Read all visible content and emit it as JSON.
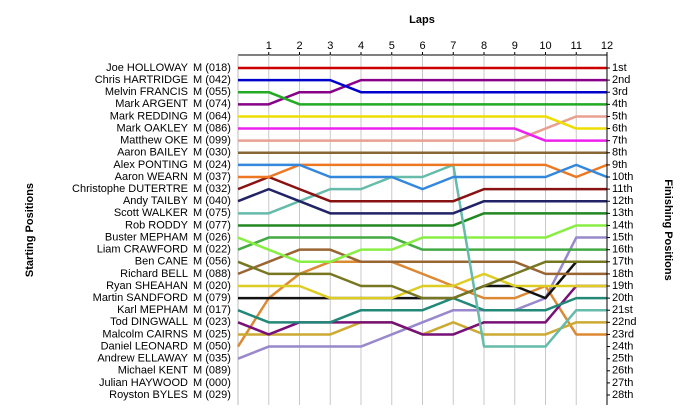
{
  "chart_data": {
    "type": "line",
    "title": "Laps",
    "y_label": "Starting Positions",
    "y2_label": "Finishing Positions",
    "x": [
      0,
      1,
      2,
      3,
      4,
      5,
      6,
      7,
      8,
      9,
      10,
      11,
      12
    ],
    "xlim": [
      0,
      12
    ],
    "xticks": [
      1,
      2,
      3,
      4,
      5,
      6,
      7,
      8,
      9,
      10,
      11,
      12
    ],
    "ylim": [
      1,
      28
    ],
    "y_inverted": true,
    "grid": true,
    "y2ticks": [
      {
        "value": 1,
        "label": "1st"
      },
      {
        "value": 2,
        "label": "2nd"
      },
      {
        "value": 3,
        "label": "3rd"
      },
      {
        "value": 4,
        "label": "4th"
      },
      {
        "value": 5,
        "label": "5th"
      },
      {
        "value": 6,
        "label": "6th"
      },
      {
        "value": 7,
        "label": "7th"
      },
      {
        "value": 8,
        "label": "8th"
      },
      {
        "value": 9,
        "label": "9th"
      },
      {
        "value": 10,
        "label": "10th"
      },
      {
        "value": 11,
        "label": "11th"
      },
      {
        "value": 12,
        "label": "12th"
      },
      {
        "value": 13,
        "label": "13th"
      },
      {
        "value": 14,
        "label": "14th"
      },
      {
        "value": 15,
        "label": "15th"
      },
      {
        "value": 16,
        "label": "16th"
      },
      {
        "value": 17,
        "label": "17th"
      },
      {
        "value": 18,
        "label": "18th"
      },
      {
        "value": 19,
        "label": "19th"
      },
      {
        "value": 20,
        "label": "20th"
      },
      {
        "value": 21,
        "label": "21st"
      },
      {
        "value": 22,
        "label": "22nd"
      },
      {
        "value": 23,
        "label": "23rd"
      },
      {
        "value": 24,
        "label": "24th"
      },
      {
        "value": 25,
        "label": "25th"
      },
      {
        "value": 26,
        "label": "26th"
      },
      {
        "value": 27,
        "label": "27th"
      },
      {
        "value": 28,
        "label": "28th"
      }
    ],
    "series": [
      {
        "name": "Joe HOLLOWAY",
        "entry": "M (018)",
        "color": "#cc0000",
        "values": [
          1,
          1,
          1,
          1,
          1,
          1,
          1,
          1,
          1,
          1,
          1,
          1,
          1
        ]
      },
      {
        "name": "Chris HARTRIDGE",
        "entry": "M (042)",
        "color": "#0000cc",
        "values": [
          2,
          2,
          2,
          2,
          3,
          3,
          3,
          3,
          3,
          3,
          3,
          3,
          3
        ]
      },
      {
        "name": "Melvin FRANCIS",
        "entry": "M (055)",
        "color": "#22aa22",
        "values": [
          3,
          3,
          4,
          4,
          4,
          4,
          4,
          4,
          4,
          4,
          4,
          4,
          4
        ]
      },
      {
        "name": "Mark ARGENT",
        "entry": "M (074)",
        "color": "#880088",
        "values": [
          4,
          4,
          3,
          3,
          2,
          2,
          2,
          2,
          2,
          2,
          2,
          2,
          2
        ]
      },
      {
        "name": "Mark REDDING",
        "entry": "M (064)",
        "color": "#eedd00",
        "values": [
          5,
          5,
          5,
          5,
          5,
          5,
          5,
          5,
          5,
          5,
          5,
          6,
          6
        ]
      },
      {
        "name": "Mark OAKLEY",
        "entry": "M (086)",
        "color": "#ee22ee",
        "values": [
          6,
          6,
          6,
          6,
          6,
          6,
          6,
          6,
          6,
          6,
          7,
          7,
          7
        ]
      },
      {
        "name": "Matthew OKE",
        "entry": "M (099)",
        "color": "#e8a090",
        "values": [
          7,
          7,
          7,
          7,
          7,
          7,
          7,
          7,
          7,
          7,
          6,
          5,
          5
        ]
      },
      {
        "name": "Aaron BAILEY",
        "entry": "M (030)",
        "color": "#886633",
        "values": [
          8,
          8,
          8,
          8,
          8,
          8,
          8,
          8,
          8,
          8,
          8,
          8,
          8
        ]
      },
      {
        "name": "Alex PONTING",
        "entry": "M (024)",
        "color": "#3388dd",
        "values": [
          9,
          9,
          9,
          10,
          10,
          10,
          11,
          10,
          10,
          10,
          10,
          9,
          10
        ]
      },
      {
        "name": "Aaron WEARN",
        "entry": "M (037)",
        "color": "#ee7722",
        "values": [
          10,
          10,
          9,
          9,
          9,
          9,
          9,
          9,
          9,
          9,
          9,
          10,
          9
        ]
      },
      {
        "name": "Christophe DUTERTRE",
        "entry": "M (032)",
        "color": "#881111",
        "values": [
          11,
          10,
          11,
          12,
          12,
          12,
          12,
          12,
          11,
          11,
          11,
          11,
          11
        ]
      },
      {
        "name": "Andy TAILBY",
        "entry": "M (040)",
        "color": "#222266",
        "values": [
          12,
          11,
          12,
          13,
          13,
          13,
          13,
          13,
          12,
          12,
          12,
          12,
          12
        ]
      },
      {
        "name": "Scott WALKER",
        "entry": "M (075)",
        "color": "#66bbaa",
        "values": [
          13,
          13,
          12,
          11,
          11,
          10,
          10,
          9,
          24,
          24,
          24,
          21,
          21
        ]
      },
      {
        "name": "Rob RODDY",
        "entry": "M (077)",
        "color": "#228822",
        "values": [
          14,
          14,
          14,
          14,
          14,
          14,
          14,
          14,
          13,
          13,
          13,
          13,
          13
        ]
      },
      {
        "name": "Buster MEPHAM",
        "entry": "M (026)",
        "color": "#88ee44",
        "values": [
          15,
          16,
          17,
          17,
          16,
          16,
          15,
          15,
          15,
          15,
          15,
          14,
          14
        ]
      },
      {
        "name": "Liam CRAWFORD",
        "entry": "M (022)",
        "color": "#44aa44",
        "values": [
          16,
          15,
          15,
          15,
          15,
          15,
          16,
          16,
          16,
          16,
          16,
          16,
          16
        ]
      },
      {
        "name": "Ben CANE",
        "entry": "M (056)",
        "color": "#777722",
        "values": [
          17,
          18,
          18,
          18,
          19,
          19,
          20,
          20,
          19,
          18,
          17,
          17,
          17
        ]
      },
      {
        "name": "Richard BELL",
        "entry": "M (088)",
        "color": "#996633",
        "values": [
          18,
          17,
          16,
          16,
          17,
          17,
          17,
          17,
          17,
          17,
          18,
          18,
          18
        ]
      },
      {
        "name": "Ryan SHEAHAN",
        "entry": "M (020)",
        "color": "#ddcc22",
        "values": [
          19,
          19,
          19,
          20,
          20,
          20,
          19,
          19,
          18,
          19,
          19,
          19,
          19
        ]
      },
      {
        "name": "Martin SANDFORD",
        "entry": "M (079)",
        "color": "#111111",
        "values": [
          20,
          20,
          20,
          20,
          20,
          20,
          20,
          20,
          19,
          19,
          20,
          17,
          17
        ]
      },
      {
        "name": "Karl MEPHAM",
        "entry": "M (017)",
        "color": "#228877",
        "values": [
          21,
          22,
          22,
          22,
          21,
          21,
          21,
          20,
          21,
          21,
          21,
          20,
          20
        ]
      },
      {
        "name": "Tod DINGWALL",
        "entry": "M (023)",
        "color": "#771177",
        "values": [
          22,
          23,
          22,
          22,
          22,
          22,
          23,
          23,
          22,
          22,
          22,
          19,
          19
        ]
      },
      {
        "name": "Malcolm CAIRNS",
        "entry": "M (025)",
        "color": "#ccaa33",
        "values": [
          23,
          23,
          23,
          23,
          22,
          22,
          23,
          22,
          23,
          23,
          23,
          22,
          22
        ]
      },
      {
        "name": "Daniel LEONARD",
        "entry": "M (050)",
        "color": "#dd8833",
        "values": [
          24,
          20,
          18,
          17,
          17,
          17,
          18,
          19,
          20,
          20,
          19,
          23,
          23
        ]
      },
      {
        "name": "Andrew ELLAWAY",
        "entry": "M (035)",
        "color": "#9988cc",
        "values": [
          25,
          24,
          24,
          24,
          24,
          23,
          22,
          21,
          21,
          21,
          20,
          15,
          15
        ]
      },
      {
        "name": "Michael KENT",
        "entry": "M (089)",
        "color": "#999999",
        "values": [
          null,
          null,
          null,
          null,
          null,
          null,
          null,
          null,
          null,
          null,
          null,
          null,
          null
        ]
      },
      {
        "name": "Julian HAYWOOD",
        "entry": "M (000)",
        "color": "#999999",
        "values": [
          null,
          null,
          null,
          null,
          null,
          null,
          null,
          null,
          null,
          null,
          null,
          null,
          null
        ]
      },
      {
        "name": "Royston BYLES",
        "entry": "M (029)",
        "color": "#999999",
        "values": [
          null,
          null,
          null,
          null,
          null,
          null,
          null,
          null,
          null,
          null,
          null,
          null,
          null
        ]
      }
    ]
  }
}
